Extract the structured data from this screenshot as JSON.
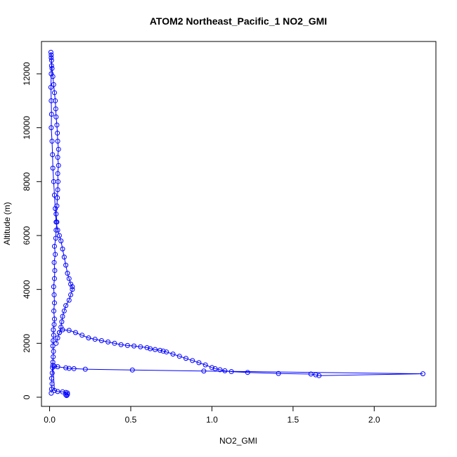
{
  "chart_data": {
    "type": "scatter",
    "title": "ATOM2 Northeast_Pacific_1 NO2_GMI",
    "xlabel": "NO2_GMI",
    "ylabel": "Altitude (m)",
    "xlim": [
      -0.05,
      2.38
    ],
    "ylim": [
      -340,
      13200
    ],
    "x_ticks": [
      0.0,
      0.5,
      1.0,
      1.5,
      2.0
    ],
    "x_tick_labels": [
      "0.0",
      "0.5",
      "1.0",
      "1.5",
      "2.0"
    ],
    "y_ticks": [
      0,
      2000,
      4000,
      6000,
      8000,
      10000,
      12000
    ],
    "y_tick_labels": [
      "0",
      "2000",
      "4000",
      "6000",
      "8000",
      "10000",
      "12000"
    ],
    "grid": false,
    "legend": "none",
    "marker": "open-circle",
    "color": "#0000ff",
    "series": [
      {
        "x": [
          0.01,
          0.012,
          0.015,
          0.013,
          0.016,
          0.018,
          0.02,
          0.022,
          0.024,
          0.02,
          0.022,
          0.025,
          0.023,
          0.028,
          0.03,
          0.026,
          0.03,
          0.028,
          0.025,
          0.03,
          0.032,
          0.028,
          0.035,
          0.03,
          0.038,
          0.04,
          0.045,
          0.04,
          0.045,
          0.048,
          0.05,
          0.052,
          0.05,
          0.055,
          0.05,
          0.055,
          0.05,
          0.048,
          0.045,
          0.04,
          0.038,
          0.035,
          0.03,
          0.025,
          0.02,
          0.015,
          0.012,
          0.01,
          0.008,
          0.01,
          0.012,
          0.01,
          0.008,
          0.01,
          0.012,
          0.01,
          0.015,
          0.018,
          0.02,
          0.025,
          0.03,
          0.035,
          0.04,
          0.05,
          0.06,
          0.07,
          0.08,
          0.09,
          0.1,
          0.11,
          0.12,
          0.13,
          0.14,
          0.14,
          0.13,
          0.12,
          0.1,
          0.09,
          0.08,
          0.075,
          0.07,
          0.06,
          0.05,
          0.04,
          0.06,
          0.08,
          0.12,
          0.16,
          0.2,
          0.24,
          0.28,
          0.32,
          0.36,
          0.4,
          0.44,
          0.48,
          0.52,
          0.56,
          0.6,
          0.62,
          0.65,
          0.68,
          0.7,
          0.72,
          0.76,
          0.8,
          0.84,
          0.88,
          0.92,
          0.96,
          1.0,
          1.02,
          1.05,
          1.08,
          1.12,
          1.22,
          1.41,
          1.61,
          1.64,
          1.66,
          2.3,
          0.95,
          0.51,
          0.22,
          0.15,
          0.12,
          0.1,
          0.05,
          0.03,
          0.02,
          0.03,
          0.05,
          0.08,
          0.1,
          0.11,
          0.11,
          0.1,
          0.105
        ],
        "y": [
          150,
          300,
          500,
          700,
          900,
          1100,
          1300,
          1500,
          1700,
          1900,
          2100,
          2300,
          2500,
          2700,
          2900,
          3200,
          3500,
          3800,
          4100,
          4400,
          4700,
          5000,
          5300,
          5600,
          5900,
          6200,
          6500,
          6800,
          7100,
          7400,
          7700,
          8000,
          8300,
          8600,
          8900,
          9200,
          9500,
          9800,
          10100,
          10400,
          10700,
          11000,
          11300,
          11600,
          11900,
          12200,
          12500,
          12700,
          12800,
          12600,
          12300,
          12000,
          11500,
          11000,
          10500,
          10000,
          9500,
          9000,
          8500,
          8000,
          7500,
          7000,
          6500,
          6200,
          6000,
          5800,
          5500,
          5200,
          4900,
          4600,
          4400,
          4200,
          4100,
          4000,
          3800,
          3600,
          3400,
          3200,
          3000,
          2800,
          2600,
          2400,
          2200,
          2000,
          2400,
          2500,
          2480,
          2400,
          2300,
          2200,
          2150,
          2100,
          2050,
          2000,
          1950,
          1920,
          1900,
          1870,
          1840,
          1800,
          1770,
          1740,
          1710,
          1680,
          1600,
          1520,
          1440,
          1360,
          1280,
          1200,
          1100,
          1060,
          1020,
          980,
          950,
          920,
          880,
          860,
          830,
          800,
          870,
          970,
          1010,
          1040,
          1060,
          1070,
          1090,
          1130,
          1150,
          1180,
          250,
          210,
          200,
          180,
          160,
          100,
          90,
          60
        ]
      }
    ]
  }
}
